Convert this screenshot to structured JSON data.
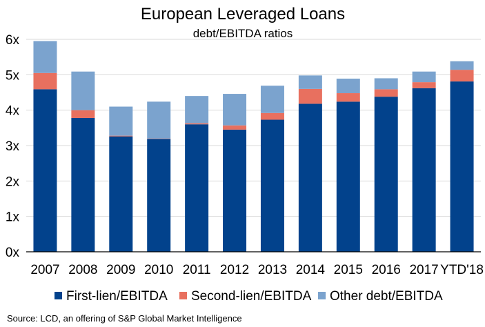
{
  "chart_data": {
    "type": "bar",
    "stacked": true,
    "title": "European Leveraged Loans",
    "subtitle": "debt/EBITDA ratios",
    "categories": [
      "2007",
      "2008",
      "2009",
      "2010",
      "2011",
      "2012",
      "2013",
      "2014",
      "2015",
      "2016",
      "2017",
      "YTD'18"
    ],
    "series": [
      {
        "name": "First-lien/EBITDA",
        "color": "#02428C",
        "values": [
          4.59,
          3.78,
          3.26,
          3.19,
          3.6,
          3.45,
          3.73,
          4.18,
          4.24,
          4.38,
          4.62,
          4.81
        ]
      },
      {
        "name": "Second-lien/EBITDA",
        "color": "#E8705F",
        "values": [
          0.46,
          0.22,
          0.02,
          0.01,
          0.03,
          0.12,
          0.19,
          0.42,
          0.24,
          0.21,
          0.17,
          0.33
        ]
      },
      {
        "name": "Other debt/EBITDA",
        "color": "#7BA3CE",
        "values": [
          0.9,
          1.09,
          0.82,
          1.04,
          0.77,
          0.89,
          0.77,
          0.38,
          0.41,
          0.31,
          0.3,
          0.24
        ]
      }
    ],
    "yticks": [
      "0x",
      "1x",
      "2x",
      "3x",
      "4x",
      "5x",
      "6x"
    ],
    "ylim": [
      0,
      6
    ],
    "grid": true,
    "legend_position": "bottom",
    "source": "Source: LCD, an offering of S&P Global Market Intelligence"
  }
}
